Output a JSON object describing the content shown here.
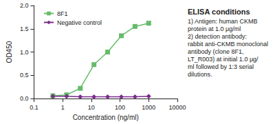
{
  "chart_data": {
    "type": "line",
    "x_label": "Concentration (ng/ml)",
    "y_label": "OD450",
    "log": "x",
    "grid": false,
    "legend": "top-left",
    "xlim": [
      0.1,
      10000
    ],
    "xticks": [
      0.1,
      1,
      10,
      100,
      1000,
      10000
    ],
    "ylim": [
      0,
      2.0
    ],
    "yticks": [
      {
        "value": 0,
        "label": "0.0"
      },
      0.5,
      {
        "value": 1,
        "label": "1.0"
      },
      1.5,
      {
        "value": 2,
        "label": "2.0"
      }
    ],
    "x": [
      0.457,
      1.372,
      4.115,
      12.35,
      37.04,
      111.1,
      333.3,
      1000
    ],
    "series": [
      {
        "name": "8F1",
        "color": "#66bb6a",
        "marker": "square",
        "line_style": "solid",
        "values": [
          0.06,
          0.08,
          0.22,
          0.73,
          1.0,
          1.35,
          1.55,
          1.62
        ]
      },
      {
        "name": "Negative control",
        "color": "#7b2a8c",
        "marker": "diamond",
        "line_style": "solid",
        "values": [
          0.05,
          0.05,
          0.04,
          0.04,
          0.04,
          0.04,
          0.04,
          0.05
        ]
      }
    ],
    "annotation": {
      "title": "ELISA conditions",
      "lines": [
        "1) Antigen: human CKMB",
        "protein at 1.0 μg/ml",
        "2) detection antibody:",
        "rabbit anti-CKMB monoclonal",
        "antibody (clone 8F1,",
        "LT_R003) at initial 1.0 μg/",
        "ml followed by 1:3 serial",
        "dilutions."
      ]
    }
  }
}
